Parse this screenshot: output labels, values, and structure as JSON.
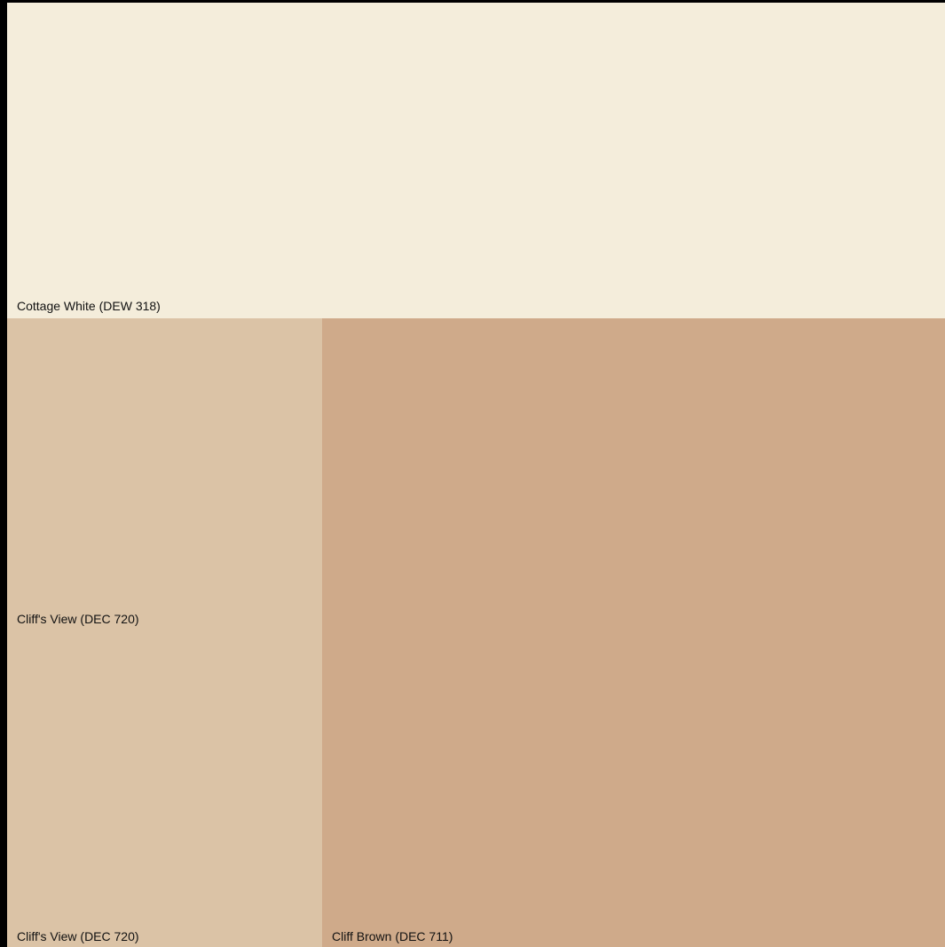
{
  "swatches": {
    "top": {
      "label": "Cottage White (DEW 318)",
      "color": "#F4EDDB"
    },
    "left": {
      "label_mid": "Cliff's View (DEC 720)",
      "label_bottom": "Cliff's View (DEC 720)",
      "color": "#DBC3A6"
    },
    "right": {
      "label": "Cliff Brown (DEC 711)",
      "color": "#CFAA8A"
    }
  },
  "frame_color": "#000000"
}
